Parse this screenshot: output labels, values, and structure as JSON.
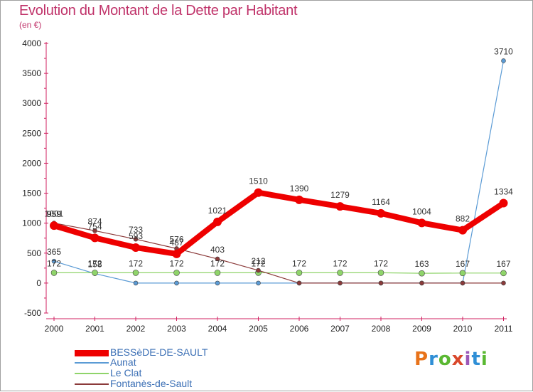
{
  "title": "Evolution du Montant de la Dette par Habitant",
  "subtitle": "(en €)",
  "brand": {
    "text": "Proxiti",
    "letters": [
      "P",
      "r",
      "o",
      "x",
      "i",
      "t",
      "i"
    ]
  },
  "chart_data": {
    "type": "line",
    "title": "Evolution du Montant de la Dette par Habitant",
    "ylabel": "(en €)",
    "xlabel": "",
    "x": [
      "2000",
      "2001",
      "2002",
      "2003",
      "2004",
      "2005",
      "2006",
      "2007",
      "2008",
      "2009",
      "2010",
      "2011"
    ],
    "ylim": [
      -500,
      4000
    ],
    "yticks": [
      -500,
      0,
      500,
      1000,
      1500,
      2000,
      2500,
      3000,
      3500,
      4000
    ],
    "grid": false,
    "legend": "bottom-left",
    "series": [
      {
        "name": "BESSèDE-DE-SAULT",
        "color": "#ee0000",
        "width": 8,
        "marker_r": 6,
        "values": [
          959,
          754,
          593,
          487,
          1021,
          1510,
          1390,
          1279,
          1164,
          1004,
          882,
          1334
        ],
        "labels": [
          "959",
          "754",
          "593",
          "487",
          "1021",
          "1510",
          "1390",
          "1279",
          "1164",
          "1004",
          "882",
          "1334"
        ]
      },
      {
        "name": "Aunat",
        "color": "#5b9bd5",
        "width": 1.2,
        "marker_r": 3,
        "values": [
          365,
          158,
          0,
          0,
          0,
          0,
          0,
          0,
          0,
          0,
          0,
          3710
        ],
        "labels": [
          "365",
          "158",
          "",
          "",
          "",
          "",
          "",
          "",
          "",
          "",
          "",
          "3710"
        ]
      },
      {
        "name": "Le Clat",
        "color": "#8fd46a",
        "width": 1.2,
        "marker_r": 4,
        "values": [
          172,
          172,
          172,
          172,
          172,
          172,
          172,
          172,
          172,
          163,
          167,
          167
        ],
        "labels": [
          "172",
          "172",
          "172",
          "172",
          "172",
          "172",
          "172",
          "172",
          "172",
          "163",
          "167",
          "167"
        ]
      },
      {
        "name": "Fontanès-de-Sault",
        "color": "#8b3a3a",
        "width": 1.2,
        "marker_r": 3,
        "values": [
          1001,
          874,
          733,
          576,
          403,
          212,
          0,
          0,
          0,
          0,
          0,
          0
        ],
        "labels": [
          "1001",
          "874",
          "733",
          "576",
          "403",
          "212",
          "",
          "",
          "",
          "",
          "",
          ""
        ]
      }
    ]
  }
}
